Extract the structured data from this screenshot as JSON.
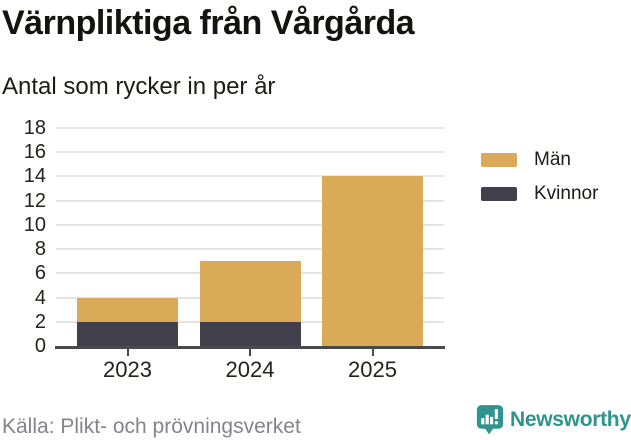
{
  "header": {
    "title": "Värnpliktiga från Vårgårda",
    "subtitle": "Antal som rycker in per år"
  },
  "chart_data": {
    "type": "bar",
    "stacked": true,
    "title": "Värnpliktiga från Vårgårda",
    "subtitle": "Antal som rycker in per år",
    "categories": [
      "2023",
      "2024",
      "2025"
    ],
    "series": [
      {
        "name": "Män",
        "color": "#d9ab58",
        "values": [
          2,
          5,
          14
        ]
      },
      {
        "name": "Kvinnor",
        "color": "#42404d",
        "values": [
          2,
          2,
          0
        ]
      }
    ],
    "totals": [
      4,
      7,
      14
    ],
    "ylim": [
      0,
      18
    ],
    "yticks": [
      0,
      2,
      4,
      6,
      8,
      10,
      12,
      14,
      16,
      18
    ],
    "grid": true,
    "legend_position": "right"
  },
  "footer": {
    "source": "Källa: Plikt- och prövningsverket",
    "brand": "Newsworthy"
  },
  "colors": {
    "accent_gold": "#d9ab58",
    "accent_dark": "#42404d",
    "brand_teal": "#2f948f",
    "grid": "#e4e4e4",
    "axis": "#4a4a4a",
    "text": "#1c1c17",
    "muted": "#84848e"
  },
  "icons": {
    "brand_icon": "newsworthy-chart-speech-bubble-icon"
  }
}
